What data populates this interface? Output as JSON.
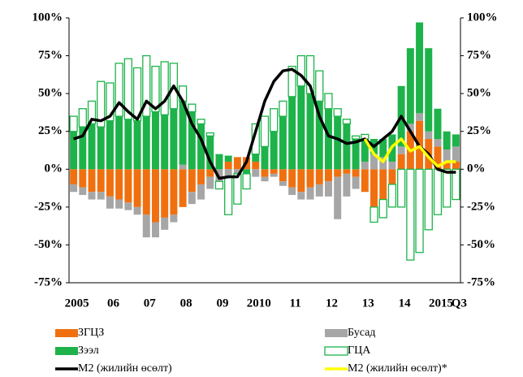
{
  "chart_data": {
    "type": "bar",
    "categories": [
      "2005",
      null,
      null,
      null,
      "06",
      null,
      null,
      null,
      "07",
      null,
      null,
      null,
      "08",
      null,
      null,
      null,
      "09",
      null,
      null,
      null,
      "2010",
      null,
      null,
      null,
      "11",
      null,
      null,
      null,
      "12",
      null,
      null,
      null,
      "13",
      null,
      null,
      null,
      "14",
      null,
      null,
      null,
      "2015",
      null,
      "Q3"
    ],
    "series": [
      {
        "name": "ЗГЦЗ",
        "type": "bar",
        "color": "#f07010",
        "values": [
          -10,
          -12,
          -15,
          -15,
          -18,
          -20,
          -22,
          -25,
          -30,
          -35,
          -32,
          -30,
          -25,
          -15,
          -10,
          -5,
          0,
          5,
          8,
          8,
          5,
          -5,
          -3,
          -8,
          -12,
          -15,
          -12,
          -10,
          -8,
          -5,
          -3,
          -5,
          -15,
          -25,
          -20,
          -10,
          10,
          25,
          32,
          20,
          15,
          5,
          5
        ]
      },
      {
        "name": "Бусад",
        "type": "bar",
        "color": "#a6a6a6",
        "values": [
          -5,
          -5,
          -5,
          -5,
          -8,
          -6,
          -5,
          -5,
          -15,
          -10,
          -8,
          -5,
          3,
          -8,
          -10,
          -8,
          -8,
          -5,
          -3,
          0,
          -5,
          -3,
          -2,
          -3,
          -5,
          -5,
          -8,
          -8,
          -10,
          -28,
          -15,
          -8,
          5,
          10,
          8,
          5,
          5,
          5,
          5,
          5,
          5,
          8,
          10
        ]
      },
      {
        "name": "Зээл",
        "type": "bar",
        "color": "#1db34a",
        "values": [
          25,
          28,
          30,
          28,
          32,
          35,
          33,
          32,
          35,
          38,
          36,
          40,
          42,
          38,
          30,
          22,
          10,
          4,
          0,
          -3,
          5,
          15,
          25,
          35,
          48,
          55,
          50,
          45,
          40,
          35,
          30,
          20,
          15,
          10,
          12,
          18,
          40,
          50,
          60,
          55,
          20,
          12,
          8
        ]
      },
      {
        "name": "ГЦА",
        "type": "outline",
        "color": "#1db34a",
        "values": [
          10,
          12,
          15,
          30,
          25,
          35,
          40,
          35,
          40,
          30,
          35,
          30,
          10,
          5,
          3,
          2,
          -5,
          -25,
          -20,
          -10,
          20,
          20,
          15,
          10,
          20,
          20,
          25,
          20,
          10,
          5,
          3,
          2,
          3,
          -10,
          -12,
          -15,
          -25,
          -60,
          -55,
          -40,
          -30,
          -25,
          -20
        ]
      },
      {
        "name": "M2 (жилийн өсөлт)",
        "type": "line",
        "color": "#000000",
        "values": [
          20,
          22,
          33,
          32,
          35,
          44,
          38,
          33,
          45,
          40,
          45,
          55,
          45,
          30,
          20,
          5,
          -6,
          -5,
          -5,
          5,
          25,
          45,
          58,
          65,
          66,
          62,
          55,
          35,
          22,
          20,
          17,
          18,
          20,
          15,
          20,
          25,
          35,
          25,
          15,
          10,
          0,
          -2,
          -2
        ]
      },
      {
        "name": "M2 (жилийн өсөлт)*",
        "type": "line",
        "color": "#ffff00",
        "values": [
          null,
          null,
          null,
          null,
          null,
          null,
          null,
          null,
          null,
          null,
          null,
          null,
          null,
          null,
          null,
          null,
          null,
          null,
          null,
          null,
          null,
          null,
          null,
          null,
          null,
          null,
          null,
          null,
          null,
          null,
          null,
          null,
          20,
          10,
          5,
          15,
          20,
          12,
          15,
          8,
          2,
          5,
          5
        ]
      }
    ],
    "ylim": [
      -75,
      100
    ],
    "yticks": [
      {
        "value": -75,
        "label": "-75%"
      },
      {
        "value": -50,
        "label": "-50%"
      },
      {
        "value": -25,
        "label": "-25%"
      },
      {
        "value": 0,
        "label": "0%"
      },
      {
        "value": 25,
        "label": "25%"
      },
      {
        "value": 50,
        "label": "50%"
      },
      {
        "value": 75,
        "label": "75%"
      },
      {
        "value": 100,
        "label": "100%"
      }
    ],
    "y2lim": [
      -75,
      100
    ],
    "y2ticks": [
      {
        "value": -75,
        "label": "-75%"
      },
      {
        "value": -50,
        "label": "-50%"
      },
      {
        "value": -25,
        "label": "-25%"
      },
      {
        "value": 0,
        "label": "0%"
      },
      {
        "value": 25,
        "label": "25%"
      },
      {
        "value": 50,
        "label": "50%"
      },
      {
        "value": 75,
        "label": "75%"
      },
      {
        "value": 100,
        "label": "100%"
      }
    ],
    "legend": "bottom"
  }
}
